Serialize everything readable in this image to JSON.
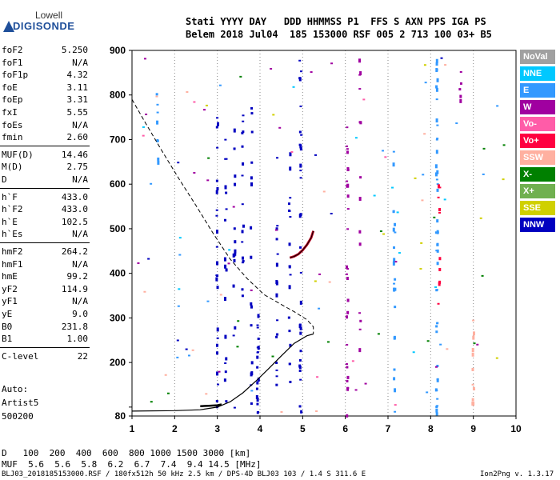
{
  "logo": {
    "line1": "Lowell",
    "line2": "DIGISONDE"
  },
  "header": {
    "line1": "Stati YYYY DAY   DDD HHMMSS P1  FFS S AXN PPS IGA PS",
    "line2": "Belem 2018 Jul04  185 153000 RSF 005 2 713 100 03+ B5"
  },
  "params": [
    {
      "k": "foF2",
      "v": "5.250"
    },
    {
      "k": "foF1",
      "v": "N/A"
    },
    {
      "k": "foF1p",
      "v": "4.32"
    },
    {
      "k": "foE",
      "v": "3.11"
    },
    {
      "k": "foEp",
      "v": "3.31"
    },
    {
      "k": "fxI",
      "v": "5.55"
    },
    {
      "k": "foEs",
      "v": "N/A"
    },
    {
      "k": "fmin",
      "v": "2.60"
    },
    {
      "k": "MUF(D)",
      "v": "14.46"
    },
    {
      "k": "M(D)",
      "v": "2.75"
    },
    {
      "k": "D",
      "v": "N/A"
    },
    {
      "k": "h`F",
      "v": "433.0"
    },
    {
      "k": "h`F2",
      "v": "433.0"
    },
    {
      "k": "h`E",
      "v": "102.5"
    },
    {
      "k": "h`Es",
      "v": "N/A"
    },
    {
      "k": "hmF2",
      "v": "264.2"
    },
    {
      "k": "hmF1",
      "v": "N/A"
    },
    {
      "k": "hmE",
      "v": "99.2"
    },
    {
      "k": "yF2",
      "v": "114.9"
    },
    {
      "k": "yF1",
      "v": "N/A"
    },
    {
      "k": "yE",
      "v": "9.0"
    },
    {
      "k": "B0",
      "v": "231.8"
    },
    {
      "k": "B1",
      "v": "1.00"
    },
    {
      "k": "C-level",
      "v": "22"
    }
  ],
  "auto": {
    "l1": "Auto:",
    "l2": "Artist5",
    "l3": "500200"
  },
  "legend": [
    {
      "label": "NoVal",
      "color": "#a0a0a0"
    },
    {
      "label": "NNE",
      "color": "#00c8ff"
    },
    {
      "label": "E",
      "color": "#3399ff"
    },
    {
      "label": "W",
      "color": "#a000a0"
    },
    {
      "label": "Vo-",
      "color": "#ff5ca8"
    },
    {
      "label": "Vo+",
      "color": "#ff0040"
    },
    {
      "label": "SSW",
      "color": "#ffb0a0"
    },
    {
      "label": "X-",
      "color": "#008000"
    },
    {
      "label": "X+",
      "color": "#70b050"
    },
    {
      "label": "SSE",
      "color": "#d0d000"
    },
    {
      "label": "NNW",
      "color": "#0000c0"
    }
  ],
  "table": {
    "row1": "D   100  200  400  600  800 1000 1500 3000 [km]",
    "row2": "MUF  5.6  5.6  5.8  6.2  6.7  7.4  9.4 14.5 [MHz]"
  },
  "footer": {
    "left": "BLJ03_2018185153000.RSF / 180fx512h 50 kHz 2.5 km / DPS-4D BLJ03 103 / 1.4 S 311.6 E",
    "right": "Ion2Png v. 1.3.17"
  },
  "chart_data": {
    "type": "scatter",
    "title": "",
    "xlabel": "",
    "ylabel": "",
    "xlim": [
      1,
      10
    ],
    "ylim": [
      80,
      900
    ],
    "x_ticks": [
      1,
      2,
      3,
      4,
      5,
      6,
      7,
      8,
      9,
      10
    ],
    "y_ticks": [
      80,
      100,
      200,
      300,
      400,
      500,
      600,
      700,
      800,
      900
    ],
    "y_tick_labels": [
      "80",
      "",
      "200",
      "300",
      "400",
      "500",
      "600",
      "700",
      "800",
      "900"
    ],
    "grid": "vertical dotted at integer frequencies",
    "profile_solid": [
      [
        1.0,
        91
      ],
      [
        2.0,
        92
      ],
      [
        2.6,
        94
      ],
      [
        3.0,
        100
      ],
      [
        3.3,
        112
      ],
      [
        3.6,
        132
      ],
      [
        3.9,
        158
      ],
      [
        4.2,
        186
      ],
      [
        4.5,
        215
      ],
      [
        4.8,
        243
      ],
      [
        5.1,
        260
      ],
      [
        5.25,
        264
      ]
    ],
    "profile_dashed": [
      [
        1.0,
        790
      ],
      [
        1.3,
        740
      ],
      [
        1.7,
        675
      ],
      [
        2.1,
        612
      ],
      [
        2.5,
        552
      ],
      [
        2.9,
        490
      ],
      [
        3.3,
        432
      ],
      [
        3.7,
        388
      ],
      [
        4.1,
        352
      ],
      [
        4.5,
        330
      ],
      [
        4.8,
        314
      ],
      [
        5.1,
        296
      ],
      [
        5.25,
        280
      ],
      [
        5.25,
        264
      ]
    ],
    "ftrace_o": [
      [
        4.7,
        435
      ],
      [
        4.8,
        438
      ],
      [
        4.9,
        443
      ],
      [
        5.0,
        452
      ],
      [
        5.1,
        464
      ],
      [
        5.2,
        480
      ],
      [
        5.25,
        495
      ]
    ],
    "etrace": [
      [
        2.6,
        102
      ],
      [
        2.8,
        103
      ],
      [
        3.0,
        104
      ],
      [
        3.1,
        106
      ]
    ],
    "echo_columns": [
      {
        "f": 1.6,
        "y0": 640,
        "y1": 890,
        "count": 8,
        "color": "#3399ff"
      },
      {
        "f": 3.0,
        "y0": 100,
        "y1": 760,
        "count": 24,
        "color": "#0000c0"
      },
      {
        "f": 3.2,
        "y0": 110,
        "y1": 770,
        "count": 18,
        "color": "#0000c0"
      },
      {
        "f": 3.4,
        "y0": 220,
        "y1": 730,
        "count": 14,
        "color": "#0000c0"
      },
      {
        "f": 3.6,
        "y0": 330,
        "y1": 760,
        "count": 16,
        "color": "#0000c0"
      },
      {
        "f": 3.8,
        "y0": 90,
        "y1": 800,
        "count": 16,
        "color": "#0000c0"
      },
      {
        "f": 3.95,
        "y0": 90,
        "y1": 310,
        "count": 18,
        "color": "#0000c0"
      },
      {
        "f": 4.4,
        "y0": 120,
        "y1": 690,
        "count": 16,
        "color": "#0000c0"
      },
      {
        "f": 4.7,
        "y0": 150,
        "y1": 690,
        "count": 18,
        "color": "#0000c0"
      },
      {
        "f": 4.95,
        "y0": 90,
        "y1": 880,
        "count": 30,
        "color": "#0000c0"
      },
      {
        "f": 6.05,
        "y0": 82,
        "y1": 740,
        "count": 28,
        "color": "#a000a0"
      },
      {
        "f": 6.35,
        "y0": 230,
        "y1": 900,
        "count": 14,
        "color": "#a000a0"
      },
      {
        "f": 7.15,
        "y0": 82,
        "y1": 690,
        "count": 22,
        "color": "#3399ff"
      },
      {
        "f": 8.15,
        "y0": 82,
        "y1": 890,
        "count": 44,
        "color": "#3399ff"
      },
      {
        "f": 8.2,
        "y0": 300,
        "y1": 620,
        "count": 10,
        "color": "#ff0040"
      },
      {
        "f": 8.7,
        "y0": 790,
        "y1": 860,
        "count": 5,
        "color": "#a000a0"
      },
      {
        "f": 9.0,
        "y0": 90,
        "y1": 300,
        "count": 12,
        "color": "#ffb0a0"
      }
    ]
  }
}
